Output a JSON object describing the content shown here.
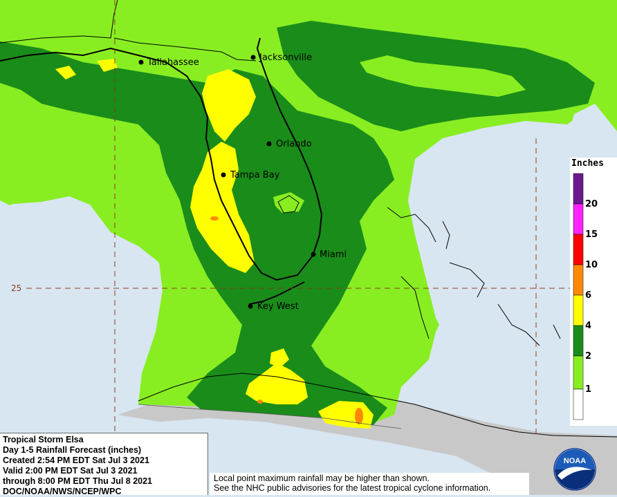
{
  "cities": [
    {
      "name": "Tallahassee"
    },
    {
      "name": "Jacksonville"
    },
    {
      "name": "Orlando"
    },
    {
      "name": "Tampa Bay"
    },
    {
      "name": "Miami"
    },
    {
      "name": "Key West"
    }
  ],
  "latitude_label": "25",
  "legend": {
    "title": "Inches",
    "ticks": [
      "20",
      "15",
      "10",
      "6",
      "4",
      "2",
      "1"
    ],
    "colors": [
      "#6b1a8f",
      "#ff22ff",
      "#ff0000",
      "#ff8800",
      "#ffff00",
      "#1a8c1a",
      "#88ee22",
      "#ffffff"
    ]
  },
  "info": {
    "line1": "Tropical Storm Elsa",
    "line2": "Day 1-5 Rainfall Forecast (inches)",
    "line3": "Created 2:54 PM EDT Sat Jul 3 2021",
    "line4": "Valid 2:00 PM EDT Sat Jul 3 2021",
    "line5": "through 8:00 PM EDT Thu Jul 8 2021",
    "line6": "DOC/NOAA/NWS/NCEP/WPC"
  },
  "note": {
    "line1": "Local point maximum rainfall may be higher than shown.",
    "line2": "See the NHC public advisories for the latest tropical cyclone information."
  },
  "logo_text": "NOAA"
}
